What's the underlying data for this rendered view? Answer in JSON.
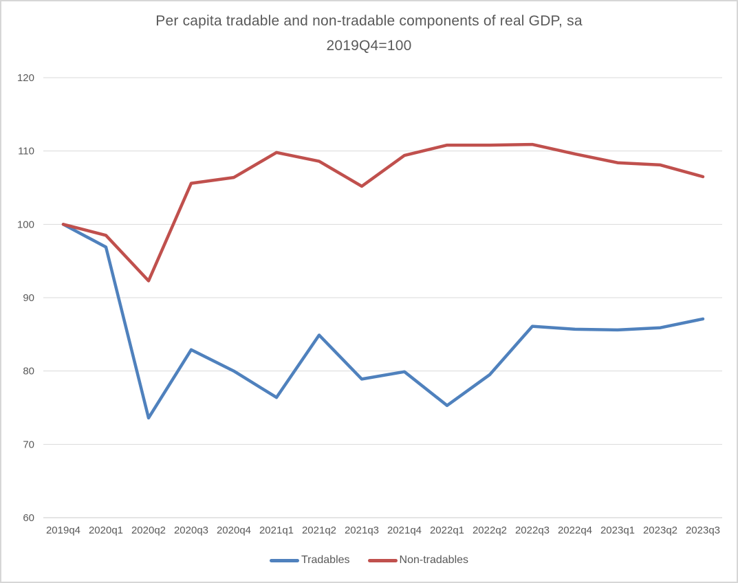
{
  "chart_data": {
    "type": "line",
    "title": "Per capita tradable and non-tradable components of real GDP, sa",
    "subtitle": "2019Q4=100",
    "categories": [
      "2019q4",
      "2020q1",
      "2020q2",
      "2020q3",
      "2020q4",
      "2021q1",
      "2021q2",
      "2021q3",
      "2021q4",
      "2022q1",
      "2022q2",
      "2022q3",
      "2022q4",
      "2023q1",
      "2023q2",
      "2023q3"
    ],
    "series": [
      {
        "name": "Tradables",
        "color": "#4F81BD",
        "values": [
          100,
          96.9,
          73.6,
          82.9,
          80.0,
          76.4,
          84.9,
          78.9,
          79.9,
          75.3,
          79.5,
          86.1,
          85.7,
          85.6,
          85.9,
          87.1
        ]
      },
      {
        "name": "Non-tradables",
        "color": "#C0504D",
        "values": [
          100,
          98.5,
          92.3,
          105.6,
          106.4,
          109.8,
          108.6,
          105.2,
          109.4,
          110.8,
          110.8,
          110.9,
          109.6,
          108.4,
          108.1,
          106.5
        ]
      }
    ],
    "ylim": [
      60,
      120
    ],
    "yticks": [
      60,
      70,
      80,
      90,
      100,
      110,
      120
    ],
    "grid": true,
    "legend_position": "bottom",
    "gridline_color": "#D9D9D9",
    "axis_line_color": "#C9C9C9",
    "tick_label_color": "#595959",
    "line_width": 4.5
  }
}
